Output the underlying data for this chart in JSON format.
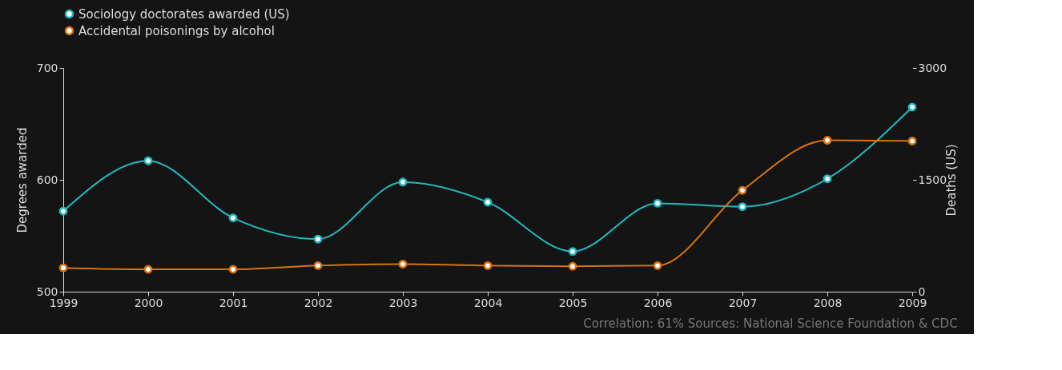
{
  "chart_data": {
    "type": "line",
    "x": [
      1999,
      2000,
      2001,
      2002,
      2003,
      2004,
      2005,
      2006,
      2007,
      2008,
      2009
    ],
    "xlim": [
      1999,
      2009
    ],
    "xticks": [
      1999,
      2000,
      2001,
      2002,
      2003,
      2004,
      2005,
      2006,
      2007,
      2008,
      2009
    ],
    "ylabel": "Degrees awarded",
    "y2label": "Deaths (US)",
    "ylim": [
      500,
      700
    ],
    "yticks": [
      500,
      600,
      700
    ],
    "y2lim": [
      0,
      3000
    ],
    "y2ticks": [
      0,
      1500,
      3000
    ],
    "series": [
      {
        "name": "Sociology doctorates awarded (US)",
        "color": "#22b8c0",
        "values": [
          572,
          617,
          566,
          547,
          598,
          580,
          536,
          579,
          576,
          601,
          665
        ]
      },
      {
        "name": "Accidental poisonings by alcohol",
        "color": "#d9730d",
        "axis": "y2",
        "values": [
          320,
          300,
          300,
          350,
          370,
          350,
          340,
          350,
          1360,
          2030,
          2020
        ]
      }
    ],
    "marker": "circle",
    "line_style": "solid",
    "grid": false,
    "legend": "top left",
    "annotations": [
      "Correlation: 61%   Sources: National Science Foundation & CDC"
    ]
  }
}
